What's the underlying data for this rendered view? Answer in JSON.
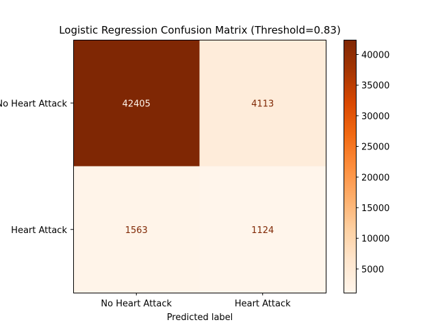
{
  "chart_data": {
    "type": "heatmap",
    "title": "Logistic Regression Confusion Matrix (Threshold=0.83)",
    "xlabel": "Predicted label",
    "ylabel": "",
    "x_categories": [
      "No Heart Attack",
      "Heart Attack"
    ],
    "y_categories": [
      "No Heart Attack",
      "Heart Attack"
    ],
    "matrix": [
      [
        42405,
        4113
      ],
      [
        1563,
        1124
      ]
    ],
    "colormap": "Oranges",
    "colorbar": {
      "min": 1124,
      "max": 42405,
      "ticks": [
        5000,
        10000,
        15000,
        20000,
        25000,
        30000,
        35000,
        40000
      ]
    },
    "grid": false
  }
}
